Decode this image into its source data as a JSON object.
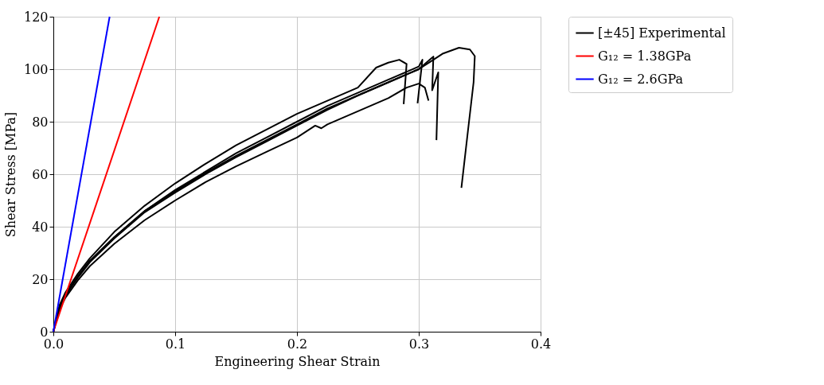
{
  "chart_data": {
    "type": "line",
    "xlabel": "Engineering Shear Strain",
    "ylabel": "Shear Stress [MPa]",
    "xlim": [
      0,
      0.4
    ],
    "ylim": [
      0,
      120
    ],
    "xticks": [
      {
        "value": 0,
        "label": "0.0"
      },
      0.1,
      0.2,
      0.3,
      0.4
    ],
    "yticks": [
      0,
      20,
      40,
      60,
      80,
      100,
      120
    ],
    "grid": true,
    "legend": "right",
    "line_style": "solid",
    "marker": "none",
    "series": [
      {
        "name": "[±45] Experimental",
        "color": "#000000",
        "x": [
          0,
          0.005,
          0.01,
          0.02,
          0.03,
          0.05,
          0.075,
          0.1,
          0.125,
          0.15,
          0.175,
          0.2,
          0.225,
          0.25,
          0.275,
          0.3,
          0.303,
          0.299
        ],
        "values": [
          0,
          9,
          14,
          21,
          27,
          36,
          46,
          54,
          61,
          68,
          74,
          80,
          86,
          91,
          96,
          101,
          103.6,
          87
        ]
      },
      {
        "color": "#000000",
        "x": [
          0,
          0.005,
          0.01,
          0.02,
          0.03,
          0.05,
          0.075,
          0.1,
          0.125,
          0.15,
          0.175,
          0.2,
          0.225,
          0.25,
          0.265,
          0.275,
          0.284,
          0.29,
          0.2876
        ],
        "values": [
          0,
          10,
          15,
          22,
          28,
          38,
          48,
          56.5,
          64,
          71,
          77,
          83,
          88,
          93,
          100.6,
          102.5,
          103.6,
          102,
          86.7
        ]
      },
      {
        "color": "#000000",
        "x": [
          0,
          0.005,
          0.01,
          0.02,
          0.03,
          0.05,
          0.075,
          0.1,
          0.125,
          0.15,
          0.175,
          0.2,
          0.225,
          0.25,
          0.275,
          0.3,
          0.31,
          0.32,
          0.333,
          0.342,
          0.346,
          0.345,
          0.34,
          0.335
        ],
        "values": [
          0,
          9,
          14,
          21,
          27,
          36,
          46,
          53.5,
          60.5,
          67,
          73,
          79,
          85,
          90,
          95,
          100,
          103,
          106,
          108.2,
          107.5,
          105,
          95,
          75,
          54.8
        ]
      },
      {
        "color": "#000000",
        "x": [
          0,
          0.005,
          0.01,
          0.02,
          0.03,
          0.05,
          0.075,
          0.1,
          0.125,
          0.15,
          0.175,
          0.2,
          0.225,
          0.25,
          0.275,
          0.3,
          0.31,
          0.312,
          0.311,
          0.316,
          0.3145
        ],
        "values": [
          0,
          9,
          14,
          20.5,
          26.5,
          35.5,
          45.5,
          53,
          60,
          66.5,
          72.5,
          78.5,
          84.5,
          90,
          95,
          100,
          104,
          104.8,
          92,
          98.8,
          73
        ]
      },
      {
        "color": "#000000",
        "x": [
          0,
          0.005,
          0.01,
          0.02,
          0.03,
          0.05,
          0.075,
          0.1,
          0.125,
          0.15,
          0.175,
          0.2,
          0.215,
          0.22,
          0.225,
          0.25,
          0.275,
          0.29,
          0.3,
          0.305,
          0.308
        ],
        "values": [
          0,
          8.5,
          13,
          19.5,
          25,
          33.5,
          42.5,
          50,
          57,
          63,
          68.5,
          74,
          78.5,
          77.5,
          79,
          84,
          89,
          93,
          94.5,
          93,
          88
        ]
      },
      {
        "name": "G₁₂ = 1.38GPa",
        "color": "#ff0000",
        "x": [
          0,
          0.087
        ],
        "values": [
          0,
          120
        ]
      },
      {
        "name": "G₁₂ = 2.6GPa",
        "color": "#0000ff",
        "x": [
          0,
          0.0462
        ],
        "values": [
          0,
          120
        ]
      }
    ]
  }
}
